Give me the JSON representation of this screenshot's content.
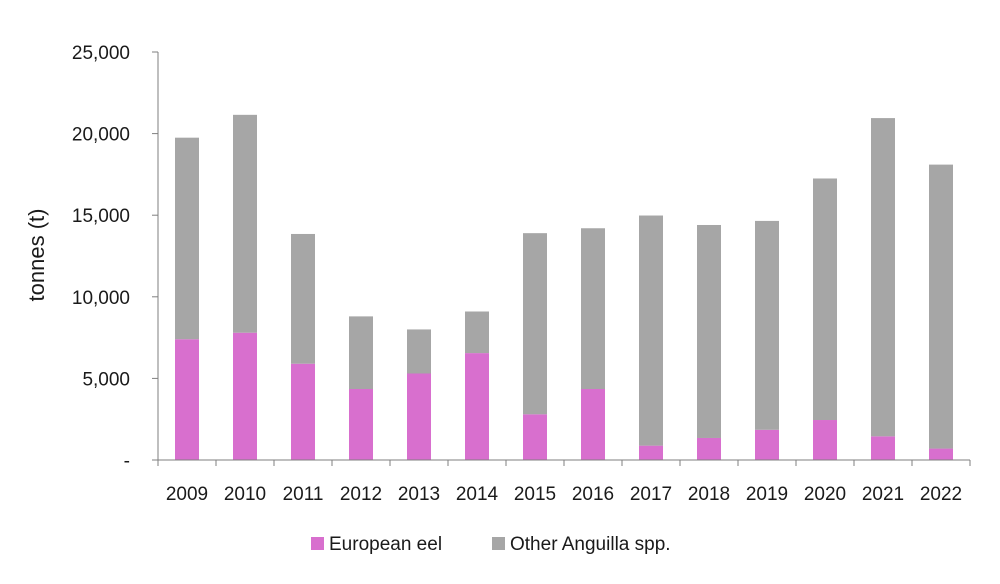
{
  "chart_data": {
    "type": "bar",
    "stacked": true,
    "title": "",
    "xlabel": "",
    "ylabel": "tonnes (t)",
    "ylim": [
      0,
      25000
    ],
    "y_ticks": [
      {
        "value": 0,
        "label": "-"
      },
      {
        "value": 5000,
        "label": "5,000"
      },
      {
        "value": 10000,
        "label": "10,000"
      },
      {
        "value": 15000,
        "label": "15,000"
      },
      {
        "value": 20000,
        "label": "20,000"
      },
      {
        "value": 25000,
        "label": "25,000"
      }
    ],
    "grid": false,
    "legend_position": "bottom",
    "categories": [
      "2009",
      "2010",
      "2011",
      "2012",
      "2013",
      "2014",
      "2015",
      "2016",
      "2017",
      "2018",
      "2019",
      "2020",
      "2021",
      "2022"
    ],
    "series": [
      {
        "name": "European eel",
        "color": "#d86fce",
        "values": [
          7400,
          7800,
          5900,
          4350,
          5300,
          6550,
          2800,
          4350,
          880,
          1350,
          1850,
          2450,
          1450,
          700
        ]
      },
      {
        "name": "Other Anguilla spp.",
        "color": "#a6a6a6",
        "values": [
          12350,
          13350,
          7950,
          4450,
          2700,
          2550,
          11100,
          9850,
          14100,
          13050,
          12800,
          14800,
          19500,
          17400
        ]
      }
    ]
  }
}
